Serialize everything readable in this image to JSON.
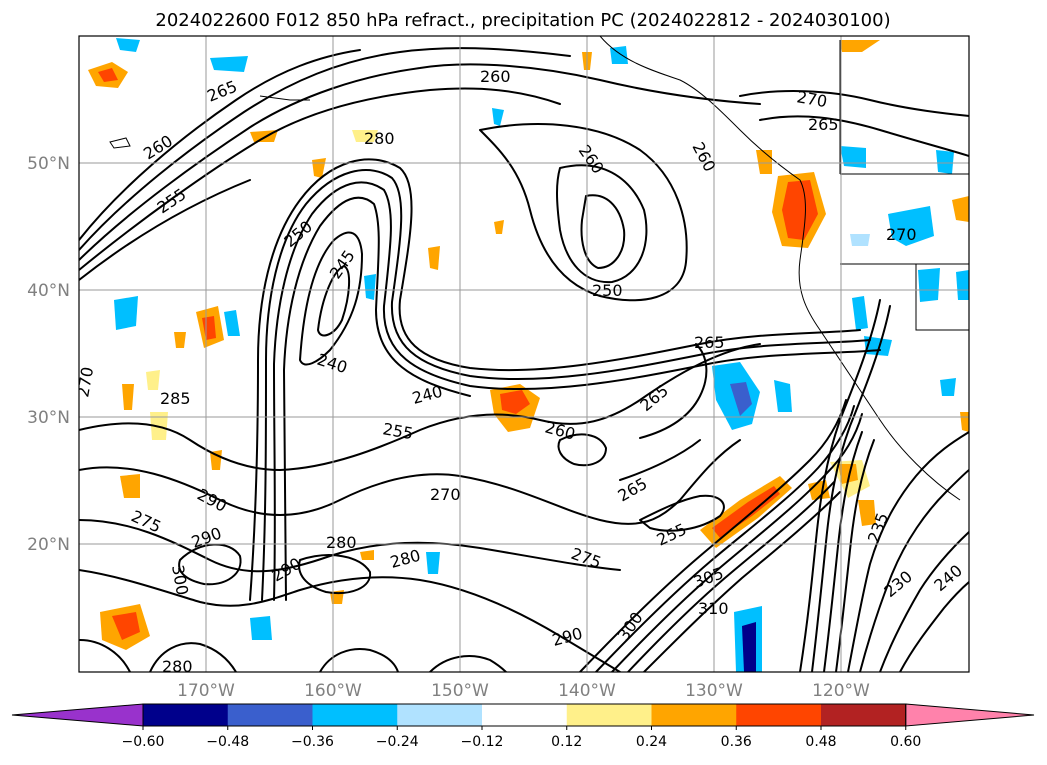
{
  "title": "2024022600 F012 850 hPa refract., precipitation PC (2024022812 - 2024030100)",
  "lat_labels": [
    "50°N",
    "40°N",
    "30°N",
    "20°N"
  ],
  "lon_labels": [
    "170°W",
    "160°W",
    "150°W",
    "140°W",
    "130°W",
    "120°W"
  ],
  "colorbar": {
    "tick_labels": [
      "−0.60",
      "−0.48",
      "−0.36",
      "−0.24",
      "−0.12",
      "0.12",
      "0.24",
      "0.36",
      "0.48",
      "0.60"
    ],
    "colors": [
      "#9932cc",
      "#00008b",
      "#3a5fcd",
      "#00bfff",
      "#b0e2ff",
      "#ffffff",
      "#fff08a",
      "#ffa500",
      "#ff4500",
      "#b22222",
      "#ff82ab"
    ]
  },
  "contour_labels": [
    "265",
    "260",
    "260",
    "255",
    "280",
    "260",
    "250",
    "245",
    "240",
    "255",
    "240",
    "270",
    "260",
    "265",
    "265",
    "270",
    "260",
    "270",
    "250",
    "285",
    "270",
    "290",
    "275",
    "290",
    "280",
    "280",
    "290",
    "300",
    "305",
    "310",
    "290",
    "300",
    "275",
    "265",
    "255",
    "235",
    "230",
    "240",
    "280",
    "265"
  ]
}
